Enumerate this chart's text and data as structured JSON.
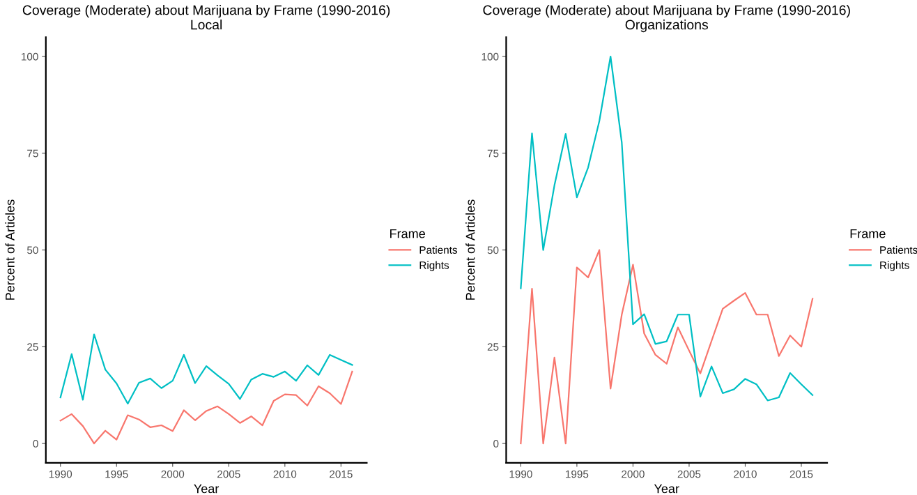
{
  "chart_data": [
    {
      "type": "line",
      "title": "Coverage (Moderate) about Marijuana by Frame (1990-2016)\nLocal",
      "xlabel": "Year",
      "ylabel": "Percent of Articles",
      "legend_title": "Frame",
      "legend": "right",
      "x": [
        1990,
        1991,
        1992,
        1993,
        1994,
        1995,
        1996,
        1997,
        1998,
        1999,
        2000,
        2001,
        2002,
        2003,
        2004,
        2005,
        2006,
        2007,
        2008,
        2009,
        2010,
        2011,
        2012,
        2013,
        2014,
        2015,
        2016
      ],
      "series": [
        {
          "name": "Patients",
          "color": "#f8766d",
          "values": [
            5.9,
            7.6,
            4.5,
            0,
            3.3,
            1.0,
            7.3,
            6.2,
            4.2,
            4.7,
            3.2,
            8.6,
            6.0,
            8.4,
            9.6,
            7.6,
            5.3,
            7.0,
            4.7,
            11.0,
            12.7,
            12.5,
            9.8,
            14.8,
            13.0,
            10.2,
            18.6
          ]
        },
        {
          "name": "Rights",
          "color": "#00bfc4",
          "values": [
            11.9,
            23.1,
            11.3,
            28.2,
            19.1,
            15.5,
            10.3,
            15.7,
            16.8,
            14.3,
            16.2,
            22.9,
            15.6,
            20.0,
            17.6,
            15.4,
            11.5,
            16.5,
            18.0,
            17.2,
            18.6,
            16.2,
            20.2,
            17.7,
            22.9,
            21.6,
            20.3
          ]
        }
      ],
      "xlim": [
        1988.7,
        2017.3
      ],
      "xticks": [
        1990,
        1995,
        2000,
        2005,
        2010,
        2015
      ],
      "ylim": [
        -5,
        105
      ],
      "yticks": [
        0,
        25,
        50,
        75,
        100
      ],
      "grid": false,
      "line_style": "solid"
    },
    {
      "type": "line",
      "title": "Coverage (Moderate) about Marijuana by Frame (1990-2016)\nOrganizations",
      "xlabel": "Year",
      "ylabel": "Percent of Articles",
      "legend_title": "Frame",
      "legend": "right",
      "x": [
        1990,
        1991,
        1992,
        1993,
        1994,
        1995,
        1996,
        1997,
        1998,
        1999,
        2000,
        2001,
        2002,
        2003,
        2004,
        2005,
        2006,
        2007,
        2008,
        2009,
        2010,
        2011,
        2012,
        2013,
        2014,
        2015,
        2016
      ],
      "series": [
        {
          "name": "Patients",
          "color": "#f8766d",
          "values": [
            0,
            40.0,
            0,
            22.2,
            0,
            45.5,
            42.9,
            50,
            14.2,
            33.3,
            46.2,
            28.4,
            22.9,
            20.6,
            30.0,
            24.0,
            18.1,
            26.5,
            34.8,
            36.9,
            38.9,
            33.3,
            33.3,
            22.6,
            27.9,
            25,
            37.4
          ]
        },
        {
          "name": "Rights",
          "color": "#00bfc4",
          "values": [
            40.1,
            80.1,
            50,
            66.7,
            80,
            63.6,
            71.3,
            83.3,
            100,
            77.8,
            30.8,
            33.4,
            25.7,
            26.4,
            33.3,
            33.3,
            12.1,
            19.9,
            13.0,
            14.0,
            16.7,
            15.3,
            11.1,
            11.9,
            18.2,
            15.3,
            12.5
          ]
        }
      ],
      "xlim": [
        1988.7,
        2017.3
      ],
      "xticks": [
        1990,
        1995,
        2000,
        2005,
        2010,
        2015
      ],
      "ylim": [
        -5,
        105
      ],
      "yticks": [
        0,
        25,
        50,
        75,
        100
      ],
      "grid": false,
      "line_style": "solid"
    }
  ]
}
